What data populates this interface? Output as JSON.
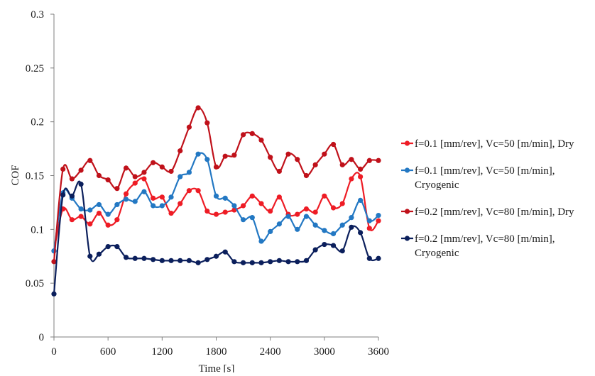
{
  "chart_data": {
    "type": "line",
    "xlabel": "Time [s]",
    "ylabel": "COF",
    "xlim": [
      0,
      3600
    ],
    "ylim": [
      0,
      0.3
    ],
    "x_ticks": [
      "0",
      "600",
      "1200",
      "1800",
      "2400",
      "3000",
      "3600"
    ],
    "y_ticks": [
      "0",
      "0.05",
      "0.1",
      "0.15",
      "0.2",
      "0.25",
      "0.3"
    ],
    "grid": false,
    "legend_position": "right",
    "x": [
      0,
      100,
      200,
      300,
      400,
      500,
      600,
      700,
      800,
      900,
      1000,
      1100,
      1200,
      1300,
      1400,
      1500,
      1600,
      1700,
      1800,
      1900,
      2000,
      2100,
      2200,
      2300,
      2400,
      2500,
      2600,
      2700,
      2800,
      2900,
      3000,
      3100,
      3200,
      3300,
      3400,
      3500,
      3600
    ],
    "series": [
      {
        "name": "f=0.1 [mm/rev], Vc=50 [m/min], Dry",
        "legend_lines": [
          "f=0.1 [mm/rev], Vc=50 [m/min], Dry"
        ],
        "color": "#ee1c25",
        "values": [
          0.08,
          0.119,
          0.109,
          0.112,
          0.105,
          0.115,
          0.104,
          0.109,
          0.133,
          0.143,
          0.147,
          0.129,
          0.13,
          0.115,
          0.124,
          0.136,
          0.136,
          0.117,
          0.114,
          0.116,
          0.118,
          0.122,
          0.131,
          0.124,
          0.117,
          0.13,
          0.114,
          0.114,
          0.119,
          0.116,
          0.131,
          0.12,
          0.124,
          0.147,
          0.149,
          0.101,
          0.108
        ]
      },
      {
        "name": "f=0.1 [mm/rev], Vc=50 [m/min], Cryogenic",
        "legend_lines": [
          "f=0.1 [mm/rev], Vc=50 [m/min],",
          "Cryogenic"
        ],
        "color": "#2378c3",
        "values": [
          0.08,
          0.134,
          0.129,
          0.119,
          0.118,
          0.123,
          0.114,
          0.123,
          0.128,
          0.126,
          0.135,
          0.122,
          0.122,
          0.13,
          0.149,
          0.153,
          0.17,
          0.165,
          0.131,
          0.129,
          0.122,
          0.109,
          0.111,
          0.089,
          0.098,
          0.105,
          0.112,
          0.1,
          0.112,
          0.104,
          0.099,
          0.096,
          0.104,
          0.111,
          0.127,
          0.108,
          0.113
        ]
      },
      {
        "name": "f=0.2 [mm/rev], Vc=80 [m/min], Dry",
        "legend_lines": [
          "f=0.2 [mm/rev], Vc=80 [m/min], Dry"
        ],
        "color": "#c0111a",
        "values": [
          0.07,
          0.156,
          0.147,
          0.155,
          0.164,
          0.15,
          0.146,
          0.138,
          0.157,
          0.149,
          0.153,
          0.162,
          0.158,
          0.154,
          0.173,
          0.195,
          0.213,
          0.199,
          0.158,
          0.168,
          0.169,
          0.188,
          0.189,
          0.183,
          0.167,
          0.154,
          0.17,
          0.165,
          0.15,
          0.16,
          0.17,
          0.179,
          0.16,
          0.165,
          0.156,
          0.164,
          0.164
        ]
      },
      {
        "name": "f=0.2 [mm/rev], Vc=80 [m/min], Cryogenic",
        "legend_lines": [
          "f=0.2 [mm/rev], Vc=80 [m/min],",
          "Cryogenic"
        ],
        "color": "#0b1f5c",
        "values": [
          0.04,
          0.132,
          0.131,
          0.142,
          0.075,
          0.077,
          0.084,
          0.084,
          0.074,
          0.073,
          0.073,
          0.072,
          0.071,
          0.071,
          0.071,
          0.071,
          0.069,
          0.072,
          0.075,
          0.079,
          0.07,
          0.069,
          0.069,
          0.069,
          0.07,
          0.071,
          0.07,
          0.07,
          0.071,
          0.081,
          0.086,
          0.085,
          0.08,
          0.102,
          0.097,
          0.073,
          0.073
        ]
      }
    ]
  }
}
